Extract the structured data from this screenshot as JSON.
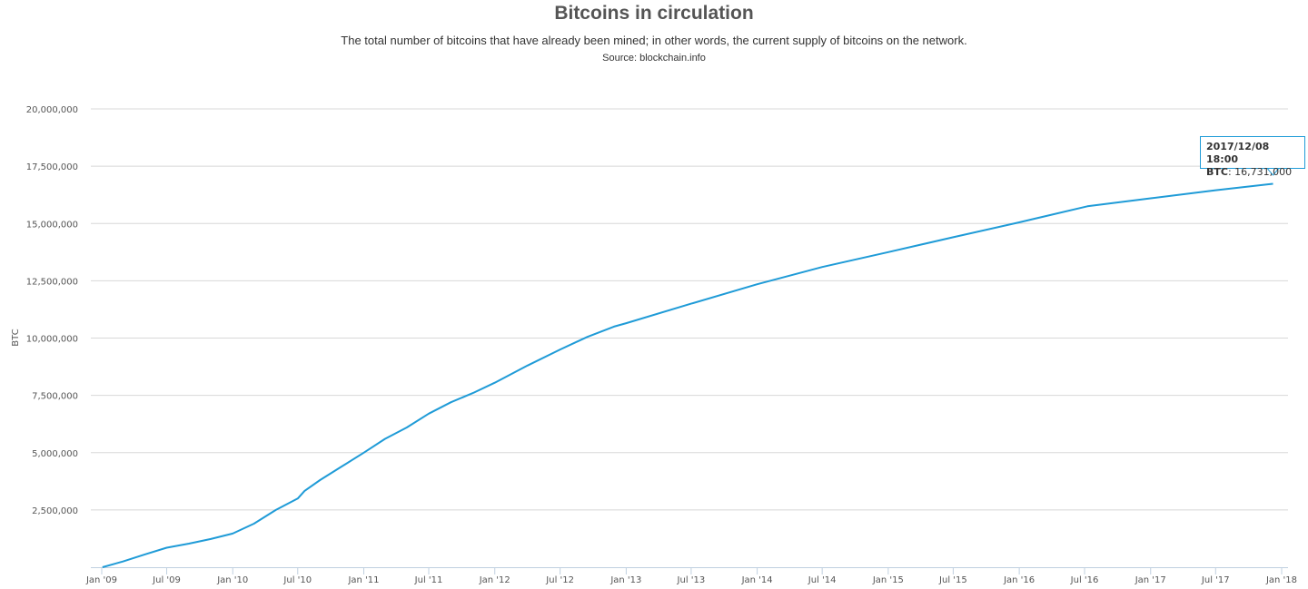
{
  "chart_data": {
    "type": "line",
    "title": "Bitcoins in circulation",
    "subtitle": "The total number of bitcoins that have already been mined; in other words, the current supply of bitcoins on the network.",
    "source": "Source: blockchain.info",
    "xlabel": "",
    "ylabel": "BTC",
    "ylim": [
      0,
      20000000
    ],
    "xlim": [
      "2008-12-01",
      "2018-01-10"
    ],
    "grid": true,
    "line_color": "#1f9bd7",
    "y_ticks": [
      {
        "value": 2500000,
        "label": "2,500,000"
      },
      {
        "value": 5000000,
        "label": "5,000,000"
      },
      {
        "value": 7500000,
        "label": "7,500,000"
      },
      {
        "value": 10000000,
        "label": "10,000,000"
      },
      {
        "value": 12500000,
        "label": "12,500,000"
      },
      {
        "value": 15000000,
        "label": "15,000,000"
      },
      {
        "value": 17500000,
        "label": "17,500,000"
      },
      {
        "value": 20000000,
        "label": "20,000,000"
      }
    ],
    "x_ticks": [
      {
        "date": "2009-01-01",
        "label": "Jan '09"
      },
      {
        "date": "2009-07-01",
        "label": "Jul '09"
      },
      {
        "date": "2010-01-01",
        "label": "Jan '10"
      },
      {
        "date": "2010-07-01",
        "label": "Jul '10"
      },
      {
        "date": "2011-01-01",
        "label": "Jan '11"
      },
      {
        "date": "2011-07-01",
        "label": "Jul '11"
      },
      {
        "date": "2012-01-01",
        "label": "Jan '12"
      },
      {
        "date": "2012-07-01",
        "label": "Jul '12"
      },
      {
        "date": "2013-01-01",
        "label": "Jan '13"
      },
      {
        "date": "2013-07-01",
        "label": "Jul '13"
      },
      {
        "date": "2014-01-01",
        "label": "Jan '14"
      },
      {
        "date": "2014-07-01",
        "label": "Jul '14"
      },
      {
        "date": "2015-01-01",
        "label": "Jan '15"
      },
      {
        "date": "2015-07-01",
        "label": "Jul '15"
      },
      {
        "date": "2016-01-01",
        "label": "Jan '16"
      },
      {
        "date": "2016-07-01",
        "label": "Jul '16"
      },
      {
        "date": "2017-01-01",
        "label": "Jan '17"
      },
      {
        "date": "2017-07-01",
        "label": "Jul '17"
      },
      {
        "date": "2018-01-01",
        "label": "Jan '18"
      }
    ],
    "series": [
      {
        "name": "BTC",
        "points": [
          [
            "2009-01-03",
            0
          ],
          [
            "2009-03-01",
            250000
          ],
          [
            "2009-05-01",
            560000
          ],
          [
            "2009-07-01",
            850000
          ],
          [
            "2009-09-01",
            1030000
          ],
          [
            "2009-11-01",
            1230000
          ],
          [
            "2010-01-01",
            1470000
          ],
          [
            "2010-03-01",
            1900000
          ],
          [
            "2010-05-01",
            2500000
          ],
          [
            "2010-07-01",
            3000000
          ],
          [
            "2010-07-20",
            3330000
          ],
          [
            "2010-09-01",
            3800000
          ],
          [
            "2010-11-01",
            4400000
          ],
          [
            "2011-01-01",
            5000000
          ],
          [
            "2011-03-01",
            5600000
          ],
          [
            "2011-05-01",
            6100000
          ],
          [
            "2011-07-01",
            6700000
          ],
          [
            "2011-09-01",
            7200000
          ],
          [
            "2011-11-01",
            7600000
          ],
          [
            "2012-01-01",
            8050000
          ],
          [
            "2012-04-01",
            8800000
          ],
          [
            "2012-07-01",
            9500000
          ],
          [
            "2012-09-15",
            10050000
          ],
          [
            "2012-11-28",
            10500000
          ],
          [
            "2013-01-01",
            10650000
          ],
          [
            "2013-07-01",
            11500000
          ],
          [
            "2014-01-01",
            12350000
          ],
          [
            "2014-07-01",
            13100000
          ],
          [
            "2015-01-01",
            13750000
          ],
          [
            "2015-07-01",
            14400000
          ],
          [
            "2016-01-01",
            15050000
          ],
          [
            "2016-07-09",
            15750000
          ],
          [
            "2017-01-01",
            16100000
          ],
          [
            "2017-07-01",
            16450000
          ],
          [
            "2017-12-08",
            16731000
          ]
        ]
      }
    ],
    "tooltip": {
      "date": "2017/12/08 18:00",
      "series_label": "BTC",
      "value": "16,731,000"
    }
  }
}
